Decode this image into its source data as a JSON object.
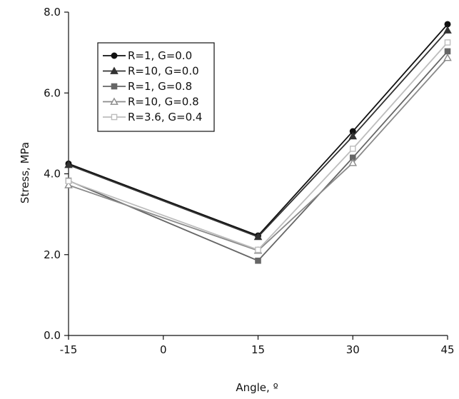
{
  "chart_data": {
    "type": "line",
    "title": "",
    "xlabel": "Angle, º",
    "ylabel": "Stress, MPa",
    "x": [
      -15,
      15,
      30,
      45
    ],
    "xlim": [
      -15,
      45
    ],
    "ylim": [
      0,
      8
    ],
    "xticks": [
      -15,
      0,
      15,
      30,
      45
    ],
    "xtick_labels": [
      "-15",
      "0",
      "15",
      "30",
      "45"
    ],
    "yticks": [
      0,
      2,
      4,
      6,
      8
    ],
    "ytick_labels": [
      "0.0",
      "2.0",
      "4.0",
      "6.0",
      "8.0"
    ],
    "grid": false,
    "legend_position": "top-left",
    "series": [
      {
        "name": "R=1, G=0.0",
        "values": [
          4.25,
          2.47,
          5.05,
          7.7
        ],
        "color": "#111111",
        "marker": "circle",
        "filled": true
      },
      {
        "name": "R=10, G=0.0",
        "values": [
          4.22,
          2.44,
          4.93,
          7.55
        ],
        "color": "#333333",
        "marker": "triangle",
        "filled": true
      },
      {
        "name": "R=1, G=0.8",
        "values": [
          3.83,
          1.85,
          4.4,
          7.03
        ],
        "color": "#666666",
        "marker": "square",
        "filled": true
      },
      {
        "name": "R=10, G=0.8",
        "values": [
          3.72,
          2.1,
          4.27,
          6.87
        ],
        "color": "#8a8a8a",
        "marker": "triangle-open",
        "filled": false
      },
      {
        "name": "R=3.6, G=0.4",
        "values": [
          3.82,
          2.12,
          4.62,
          7.25
        ],
        "color": "#bdbdbd",
        "marker": "square-open",
        "filled": false
      }
    ]
  }
}
